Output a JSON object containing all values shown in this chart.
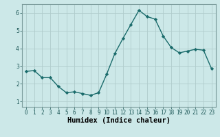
{
  "x": [
    0,
    1,
    2,
    3,
    4,
    5,
    6,
    7,
    8,
    9,
    10,
    11,
    12,
    13,
    14,
    15,
    16,
    17,
    18,
    19,
    20,
    21,
    22,
    23
  ],
  "y": [
    2.7,
    2.75,
    2.35,
    2.35,
    1.85,
    1.5,
    1.55,
    1.45,
    1.35,
    1.5,
    2.55,
    3.7,
    4.55,
    5.35,
    6.15,
    5.8,
    5.65,
    4.7,
    4.05,
    3.75,
    3.85,
    3.95,
    3.9,
    2.85
  ],
  "line_color": "#1a6b6b",
  "marker": "D",
  "marker_size": 2.2,
  "bg_color": "#cce8e8",
  "grid_major_color": "#b0cccc",
  "grid_minor_color": "#c0d8d8",
  "xlabel": "Humidex (Indice chaleur)",
  "xlim": [
    -0.5,
    23.5
  ],
  "ylim": [
    0.7,
    6.5
  ],
  "yticks": [
    1,
    2,
    3,
    4,
    5,
    6
  ],
  "xticks": [
    0,
    1,
    2,
    3,
    4,
    5,
    6,
    7,
    8,
    9,
    10,
    11,
    12,
    13,
    14,
    15,
    16,
    17,
    18,
    19,
    20,
    21,
    22,
    23
  ],
  "tick_fontsize": 5.5,
  "xlabel_fontsize": 7.5,
  "linewidth": 1.0
}
